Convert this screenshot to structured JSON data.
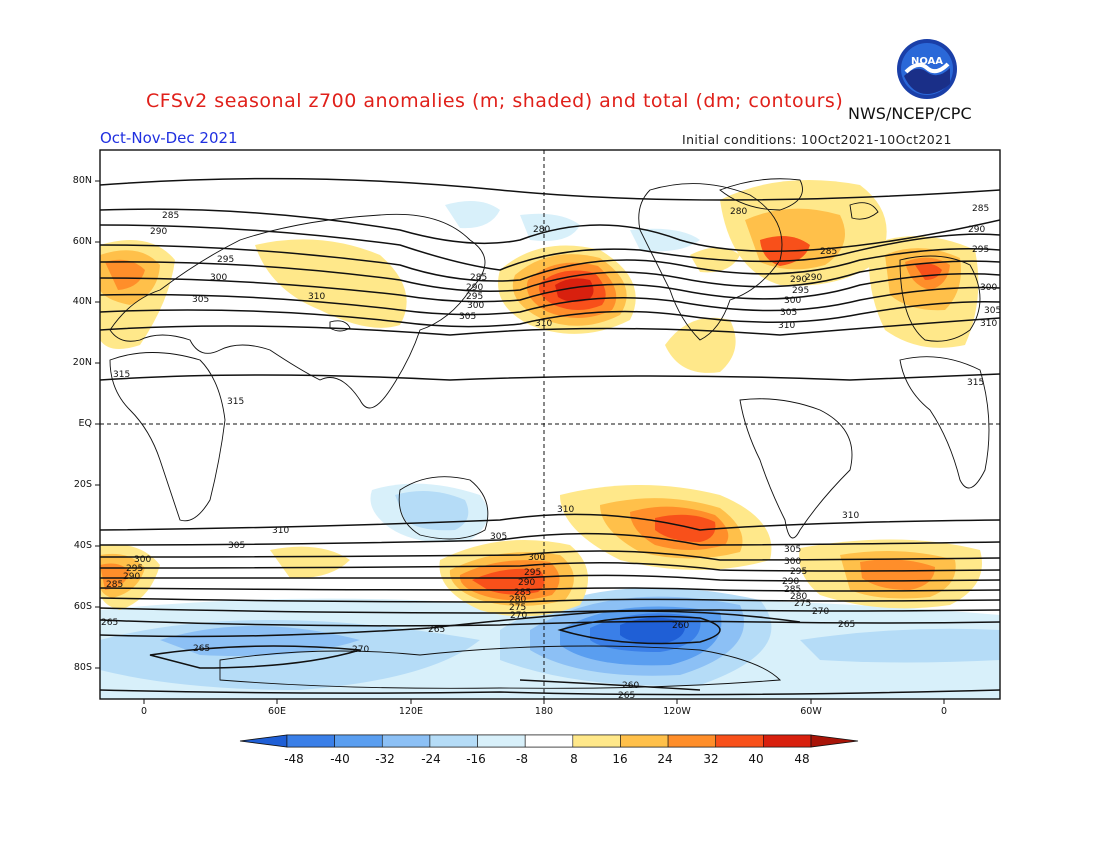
{
  "header": {
    "title": "CFSv2 seasonal z700 anomalies (m; shaded) and total (dm; contours)",
    "agency": "NWS/NCEP/CPC",
    "period": "Oct-Nov-Dec 2021",
    "initial_conditions": "Initial conditions: 10Oct2021-10Oct2021",
    "logo_text": "NOAA"
  },
  "axes": {
    "lat_labels": [
      "80N",
      "60N",
      "40N",
      "20N",
      "EQ",
      "20S",
      "40S",
      "60S",
      "80S"
    ],
    "lon_labels": [
      "0",
      "60E",
      "120E",
      "180",
      "120W",
      "60W",
      "0"
    ]
  },
  "contour_labels": [
    "285",
    "290",
    "295",
    "300",
    "305",
    "310",
    "315",
    "315",
    "280",
    "285",
    "290",
    "295",
    "300",
    "305",
    "310",
    "290",
    "285",
    "290",
    "295",
    "300",
    "305",
    "310",
    "280",
    "285",
    "290",
    "295",
    "300",
    "305",
    "310",
    "310",
    "305",
    "305",
    "300",
    "295",
    "290",
    "285",
    "280",
    "275",
    "270",
    "300",
    "295",
    "290",
    "285",
    "305",
    "300",
    "295",
    "290",
    "285",
    "280",
    "275",
    "270",
    "265",
    "265",
    "270",
    "260",
    "260",
    "265",
    "310",
    "310",
    "265",
    "265",
    "315"
  ],
  "colorbar": {
    "labels": [
      "-48",
      "-40",
      "-32",
      "-24",
      "-16",
      "-8",
      "8",
      "16",
      "24",
      "32",
      "40",
      "48"
    ],
    "colors": [
      "#1f5fd6",
      "#3a7fe8",
      "#5a9ef0",
      "#8cc0f5",
      "#b5dcf7",
      "#d8f0fa",
      "#ffffff",
      "#ffe88a",
      "#ffc04a",
      "#ff8e2a",
      "#f8501a",
      "#d8200e",
      "#a81408"
    ]
  },
  "colors": {
    "title": "#e0201a",
    "period": "#2030e0"
  }
}
